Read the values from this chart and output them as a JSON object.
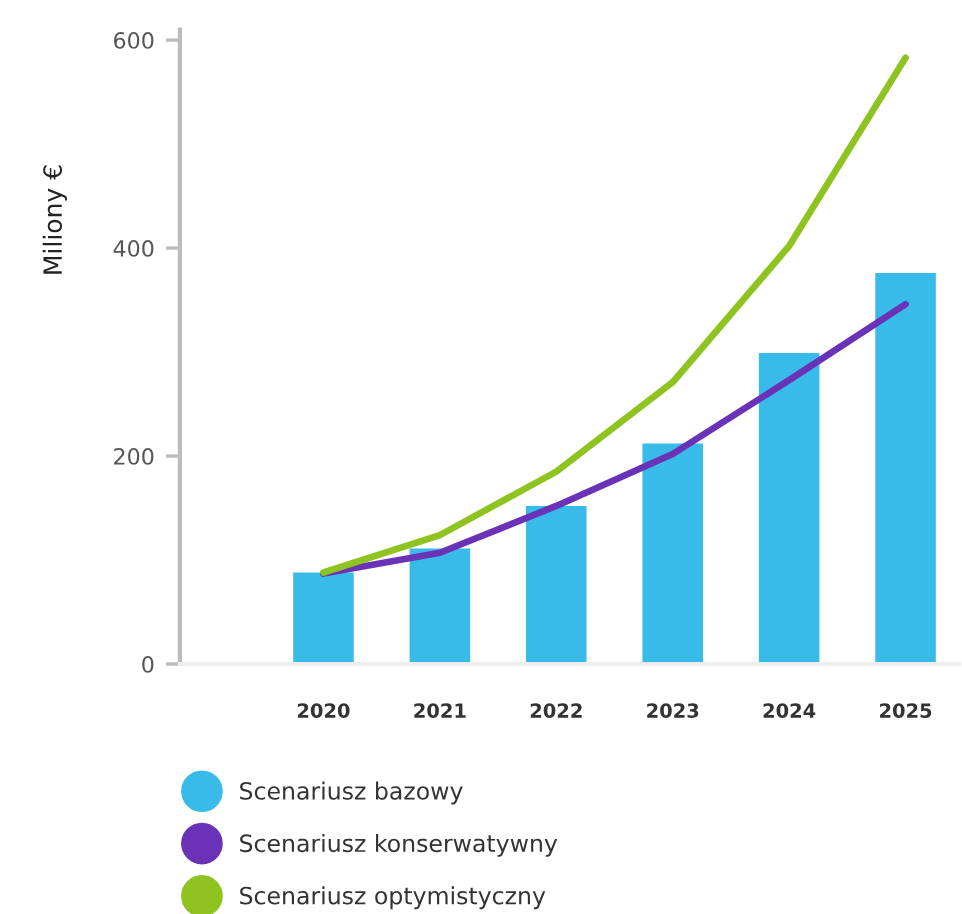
{
  "chart_data": {
    "type": "bar",
    "ylabel": "Miliony €",
    "categories": [
      "2020",
      "2021",
      "2022",
      "2023",
      "2024",
      "2025"
    ],
    "series": [
      {
        "name": "Scenariusz bazowy",
        "color": "#38bbe8",
        "values": [
          88,
          111,
          152,
          212,
          299,
          376
        ]
      },
      {
        "name": "Scenariusz konserwatywny",
        "type": "line",
        "color": "#6a32b6",
        "values": [
          87,
          107,
          152,
          202,
          273,
          346
        ]
      },
      {
        "name": "Scenariusz optymistyczny",
        "type": "line",
        "color": "#8fc31f",
        "values": [
          88,
          124,
          185,
          271,
          402,
          583
        ]
      }
    ],
    "ylim": [
      0,
      610
    ],
    "yticks": [
      0,
      200,
      400,
      600
    ],
    "legend": "bottom"
  }
}
